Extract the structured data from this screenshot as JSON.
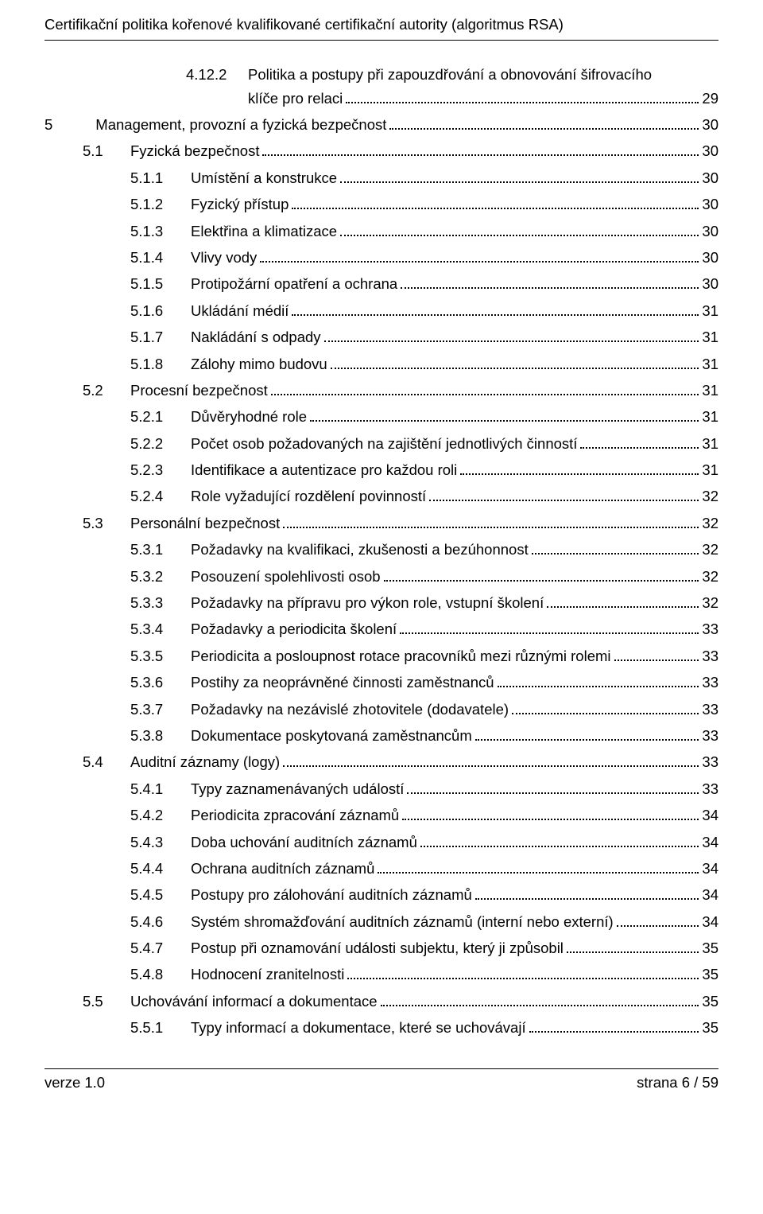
{
  "header_title": "Certifikační politika kořenové kvalifikované certifikační autority (algoritmus RSA)",
  "footer_left": "verze 1.0",
  "footer_right": "strana 6 / 59",
  "toc": {
    "font_size_pt": 14,
    "text_color": "#000000",
    "background_color": "#ffffff",
    "dot_leader_color": "#000000",
    "rows": [
      {
        "level": 3,
        "num": "4.12.2",
        "text": "Politika a postupy při zapouzdřování a obnovování šifrovacího",
        "wrap_text": "klíče pro relaci",
        "page": "29"
      },
      {
        "level": 0,
        "num": "5",
        "text": "Management, provozní a fyzická bezpečnost",
        "page": "30"
      },
      {
        "level": 1,
        "num": "5.1",
        "text": "Fyzická bezpečnost",
        "page": "30"
      },
      {
        "level": 2,
        "num": "5.1.1",
        "text": "Umístění a konstrukce",
        "page": "30"
      },
      {
        "level": 2,
        "num": "5.1.2",
        "text": "Fyzický přístup",
        "page": "30"
      },
      {
        "level": 2,
        "num": "5.1.3",
        "text": "Elektřina a klimatizace",
        "page": "30"
      },
      {
        "level": 2,
        "num": "5.1.4",
        "text": "Vlivy vody",
        "page": "30"
      },
      {
        "level": 2,
        "num": "5.1.5",
        "text": "Protipožární opatření a ochrana",
        "page": "30"
      },
      {
        "level": 2,
        "num": "5.1.6",
        "text": "Ukládání médií",
        "page": "31"
      },
      {
        "level": 2,
        "num": "5.1.7",
        "text": "Nakládání s odpady",
        "page": "31"
      },
      {
        "level": 2,
        "num": "5.1.8",
        "text": "Zálohy mimo budovu",
        "page": "31"
      },
      {
        "level": 1,
        "num": "5.2",
        "text": "Procesní bezpečnost",
        "page": "31"
      },
      {
        "level": 2,
        "num": "5.2.1",
        "text": "Důvěryhodné role",
        "page": "31"
      },
      {
        "level": 2,
        "num": "5.2.2",
        "text": "Počet osob požadovaných na zajištění jednotlivých činností",
        "page": "31"
      },
      {
        "level": 2,
        "num": "5.2.3",
        "text": "Identifikace a autentizace pro každou roli",
        "page": "31"
      },
      {
        "level": 2,
        "num": "5.2.4",
        "text": "Role vyžadující rozdělení povinností",
        "page": "32"
      },
      {
        "level": 1,
        "num": "5.3",
        "text": "Personální bezpečnost",
        "page": "32"
      },
      {
        "level": 2,
        "num": "5.3.1",
        "text": "Požadavky na kvalifikaci, zkušenosti a bezúhonnost",
        "page": "32"
      },
      {
        "level": 2,
        "num": "5.3.2",
        "text": "Posouzení spolehlivosti osob",
        "page": "32"
      },
      {
        "level": 2,
        "num": "5.3.3",
        "text": "Požadavky na přípravu pro výkon role, vstupní školení",
        "page": "32"
      },
      {
        "level": 2,
        "num": "5.3.4",
        "text": "Požadavky a periodicita školení",
        "page": "33"
      },
      {
        "level": 2,
        "num": "5.3.5",
        "text": "Periodicita a posloupnost rotace pracovníků mezi různými rolemi",
        "page": "33"
      },
      {
        "level": 2,
        "num": "5.3.6",
        "text": "Postihy za neoprávněné činnosti zaměstnanců",
        "page": "33"
      },
      {
        "level": 2,
        "num": "5.3.7",
        "text": "Požadavky na nezávislé zhotovitele (dodavatele)",
        "page": "33"
      },
      {
        "level": 2,
        "num": "5.3.8",
        "text": "Dokumentace poskytovaná zaměstnancům",
        "page": "33"
      },
      {
        "level": 1,
        "num": "5.4",
        "text": "Auditní záznamy (logy)",
        "page": "33"
      },
      {
        "level": 2,
        "num": "5.4.1",
        "text": "Typy zaznamenávaných událostí",
        "page": "33"
      },
      {
        "level": 2,
        "num": "5.4.2",
        "text": "Periodicita zpracování záznamů",
        "page": "34"
      },
      {
        "level": 2,
        "num": "5.4.3",
        "text": "Doba uchování auditních záznamů",
        "page": "34"
      },
      {
        "level": 2,
        "num": "5.4.4",
        "text": "Ochrana auditních záznamů",
        "page": "34"
      },
      {
        "level": 2,
        "num": "5.4.5",
        "text": "Postupy pro zálohování auditních záznamů",
        "page": "34"
      },
      {
        "level": 2,
        "num": "5.4.6",
        "text": "Systém shromažďování auditních záznamů (interní nebo externí)",
        "page": "34"
      },
      {
        "level": 2,
        "num": "5.4.7",
        "text": "Postup při oznamování události subjektu, který ji způsobil",
        "page": "35"
      },
      {
        "level": 2,
        "num": "5.4.8",
        "text": "Hodnocení zranitelnosti",
        "page": "35"
      },
      {
        "level": 1,
        "num": "5.5",
        "text": "Uchovávání informací a dokumentace",
        "page": "35"
      },
      {
        "level": 2,
        "num": "5.5.1",
        "text": "Typy informací a dokumentace, které se uchovávají",
        "page": "35"
      }
    ]
  }
}
